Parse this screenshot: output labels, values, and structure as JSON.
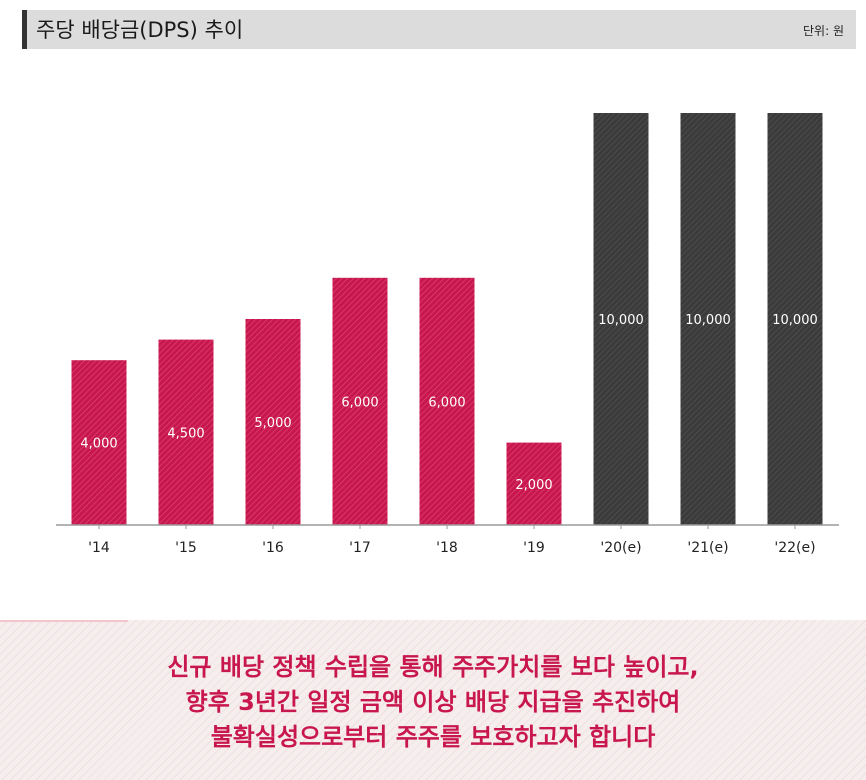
{
  "header": {
    "title": "주당 배당금(DPS) 추이",
    "unit": "단위: 원"
  },
  "chart_data": {
    "type": "bar",
    "title": "주당 배당금(DPS) 추이",
    "categories": [
      "'14",
      "'15",
      "'16",
      "'17",
      "'18",
      "'19",
      "'20(e)",
      "'21(e)",
      "'22(e)"
    ],
    "values": [
      4000,
      4500,
      5000,
      6000,
      6000,
      2000,
      10000,
      10000,
      10000
    ],
    "value_labels": [
      "4,000",
      "4,500",
      "5,000",
      "6,000",
      "6,000",
      "2,000",
      "10,000",
      "10,000",
      "10,000"
    ],
    "estimated": [
      false,
      false,
      false,
      false,
      false,
      false,
      true,
      true,
      true
    ],
    "ylim": [
      0,
      10000
    ],
    "grid": false,
    "colors": {
      "actual": "#c8174f",
      "estimate": "#3b3b3b"
    }
  },
  "footer": {
    "lines": [
      "신규 배당 정책 수립을 통해 주주가치를 보다 높이고,",
      "향후 3년간 일정 금액 이상 배당 지급을 추진하여",
      "불확실성으로부터 주주를 보호하고자 합니다"
    ]
  }
}
